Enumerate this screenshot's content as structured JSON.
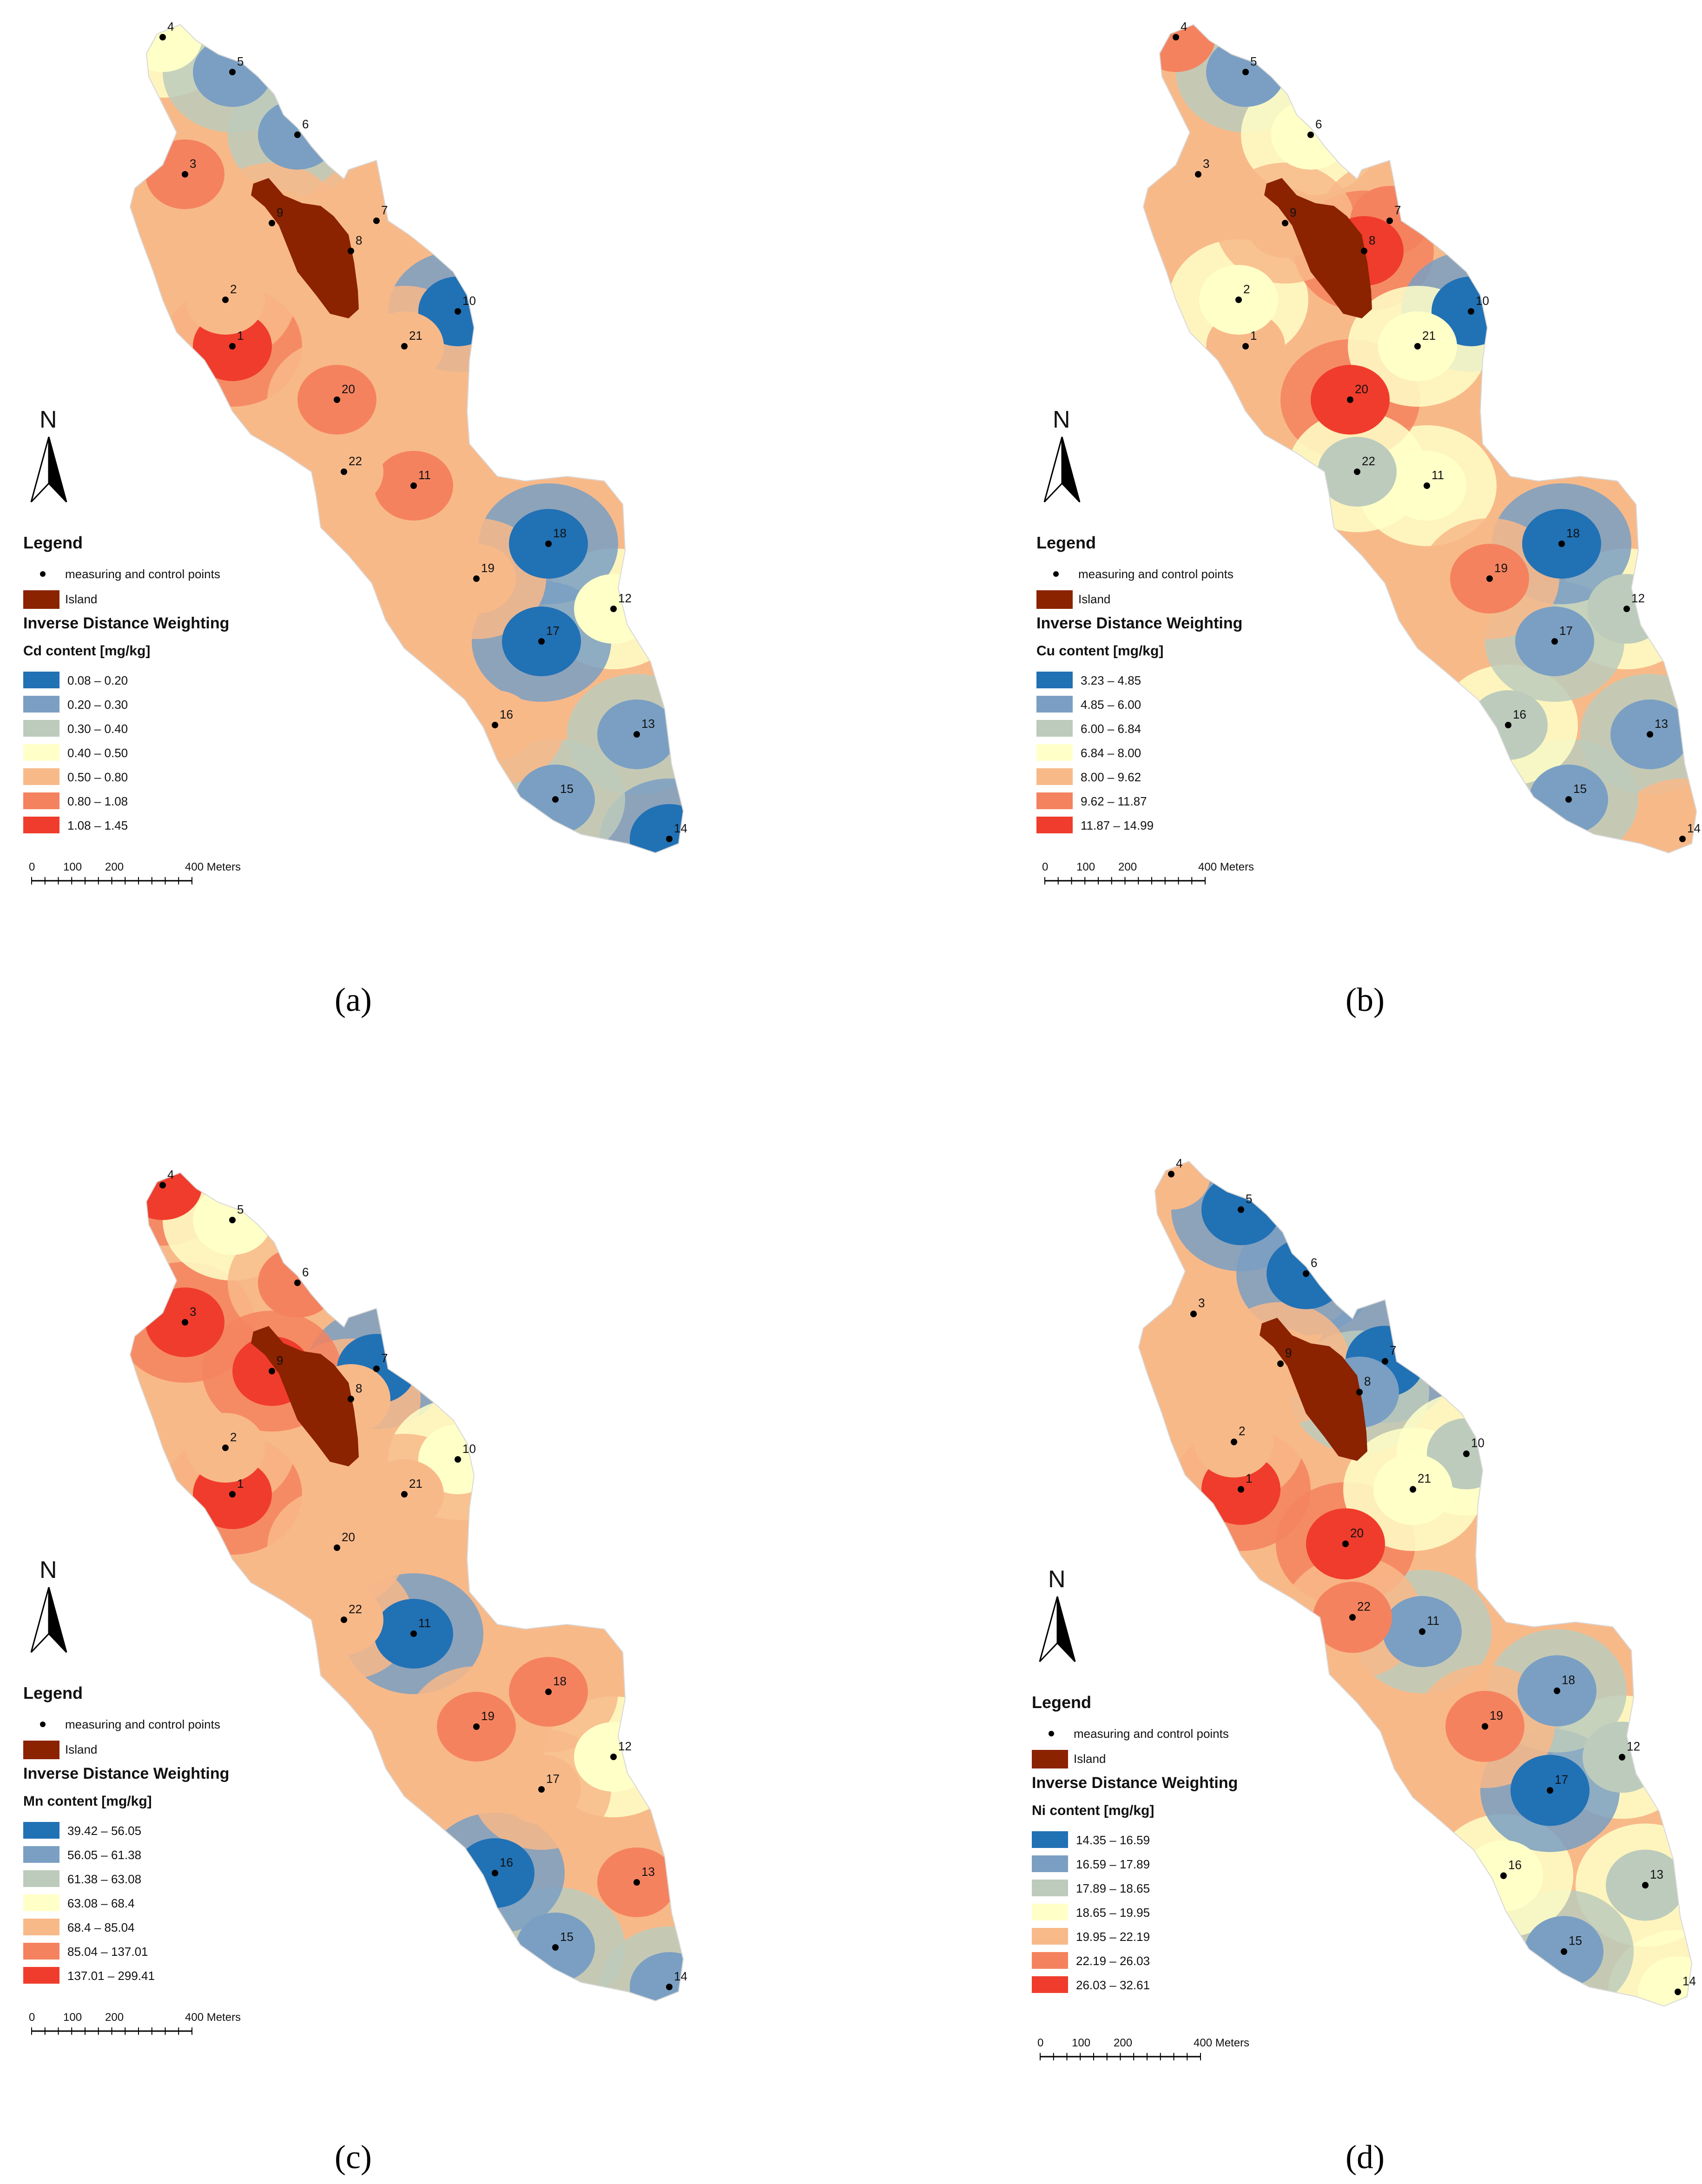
{
  "panels": [
    {
      "id": "a",
      "caption": "(a)",
      "legend_title": "Legend",
      "point_label": "measuring and control points",
      "island_label": "Island",
      "method": "Inverse Distance Weighting",
      "variable": "Cd content [mg/kg]",
      "classes": [
        "0.08 – 0.20",
        "0.20 – 0.30",
        "0.30 – 0.40",
        "0.40 – 0.50",
        "0.50 – 0.80",
        "0.80 – 1.08",
        "1.08 – 1.45"
      ],
      "scale": {
        "zero": "0",
        "t1": "100",
        "t2": "200",
        "end": "400 Meters"
      }
    },
    {
      "id": "b",
      "caption": "(b)",
      "legend_title": "Legend",
      "point_label": "measuring and control points",
      "island_label": "Island",
      "method": "Inverse Distance Weighting",
      "variable": "Cu content [mg/kg]",
      "classes": [
        "3.23 – 4.85",
        "4.85 – 6.00",
        "6.00 – 6.84",
        "6.84 – 8.00",
        "8.00 – 9.62",
        "9.62 – 11.87",
        "11.87 – 14.99"
      ],
      "scale": {
        "zero": "0",
        "t1": "100",
        "t2": "200",
        "end": "400 Meters"
      }
    },
    {
      "id": "c",
      "caption": "(c)",
      "legend_title": "Legend",
      "point_label": "measuring and control points",
      "island_label": "Island",
      "method": "Inverse Distance Weighting",
      "variable": "Mn content [mg/kg]",
      "classes": [
        "39.42 – 56.05",
        "56.05 – 61.38",
        "61.38 – 63.08",
        "63.08 – 68.4",
        "68.4 – 85.04",
        "85.04 – 137.01",
        "137.01 – 299.41"
      ],
      "scale": {
        "zero": "0",
        "t1": "100",
        "t2": "200",
        "end": "400 Meters"
      }
    },
    {
      "id": "d",
      "caption": "(d)",
      "legend_title": "Legend",
      "point_label": "measuring and control points",
      "island_label": "Island",
      "method": "Inverse Distance Weighting",
      "variable": "Ni content [mg/kg]",
      "classes": [
        "14.35 – 16.59",
        "16.59 – 17.89",
        "17.89 – 18.65",
        "18.65 – 19.95",
        "19.95 – 22.19",
        "22.19 – 26.03",
        "26.03 – 32.61"
      ],
      "scale": {
        "zero": "0",
        "t1": "100",
        "t2": "200",
        "end": "400 Meters"
      }
    }
  ],
  "north_label": "N",
  "class_colors": [
    "#2171b5",
    "#7a9fc3",
    "#bccbbc",
    "#ffffc8",
    "#f8b989",
    "#f5825f",
    "#f03c2c"
  ],
  "island_color": "#8b2200",
  "point_ids": [
    "1",
    "2",
    "3",
    "4",
    "5",
    "6",
    "7",
    "8",
    "9",
    "10",
    "11",
    "12",
    "13",
    "14",
    "15",
    "16",
    "17",
    "18",
    "19",
    "20",
    "21",
    "22"
  ],
  "class_per_point": {
    "a": [
      6,
      4,
      5,
      3,
      1,
      1,
      4,
      4,
      4,
      0,
      5,
      3,
      1,
      0,
      1,
      4,
      0,
      0,
      4,
      5,
      4,
      4
    ],
    "b": [
      4,
      3,
      4,
      5,
      1,
      3,
      5,
      6,
      4,
      0,
      3,
      2,
      1,
      4,
      1,
      2,
      1,
      0,
      5,
      6,
      3,
      2
    ],
    "c": [
      6,
      4,
      6,
      6,
      3,
      5,
      0,
      4,
      6,
      3,
      0,
      3,
      5,
      1,
      1,
      0,
      4,
      5,
      5,
      4,
      4,
      4
    ],
    "d": [
      6,
      4,
      4,
      4,
      0,
      0,
      0,
      1,
      4,
      2,
      1,
      2,
      2,
      3,
      1,
      3,
      0,
      1,
      5,
      6,
      3,
      5
    ]
  }
}
